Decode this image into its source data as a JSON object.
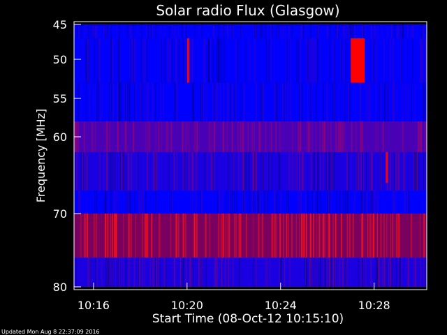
{
  "chart_data": {
    "type": "heatmap",
    "title": "Solar radio Flux (Glasgow)",
    "xlabel": "Start Time (08-Oct-12 10:15:10)",
    "ylabel": "Frequency [MHz]",
    "x_ticks": [
      "10:16",
      "10:20",
      "10:24",
      "10:28"
    ],
    "y_ticks": [
      "45",
      "50",
      "55",
      "60",
      "70",
      "80"
    ],
    "ylim": [
      45,
      80
    ],
    "xlim": [
      "10:15:10",
      "10:30:15"
    ],
    "colors": {
      "low": "#0000ff",
      "mid": "#7f0080",
      "high": "#ff0000",
      "background": "#000000",
      "axes": "#ffffff"
    },
    "frequency_bands": [
      {
        "label": "45-47",
        "level": "low"
      },
      {
        "label": "47-53",
        "level": "low"
      },
      {
        "label": "53-58",
        "level": "low"
      },
      {
        "label": "58-62",
        "level": "mid"
      },
      {
        "label": "62-67",
        "level": "low-mixed"
      },
      {
        "label": "67-70",
        "level": "low"
      },
      {
        "label": "70-76",
        "level": "mid-high"
      },
      {
        "label": "76-80",
        "level": "low-mixed"
      }
    ],
    "bursts": [
      {
        "time": "10:20:00",
        "freq": "47-53",
        "level": "high"
      },
      {
        "time": "10:27:00",
        "freq": "47-53",
        "level": "high"
      },
      {
        "time": "10:28:30",
        "freq": "62-66",
        "level": "high"
      }
    ]
  },
  "footer": {
    "updated": "Updated Mon Aug  8 22:37:09 2016"
  }
}
